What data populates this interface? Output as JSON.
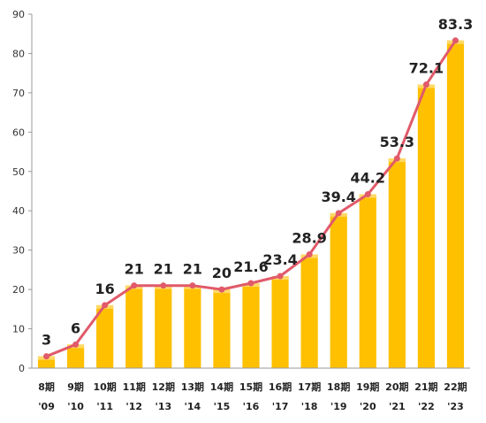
{
  "chart_data": {
    "type": "bar",
    "categories": [
      [
        "8期",
        "'09"
      ],
      [
        "9期",
        "'10"
      ],
      [
        "10期",
        "'11"
      ],
      [
        "11期",
        "'12"
      ],
      [
        "12期",
        "'13"
      ],
      [
        "13期",
        "'14"
      ],
      [
        "14期",
        "'15"
      ],
      [
        "15期",
        "'16"
      ],
      [
        "16期",
        "'17"
      ],
      [
        "17期",
        "'18"
      ],
      [
        "18期",
        "'19"
      ],
      [
        "19期",
        "'20"
      ],
      [
        "20期",
        "'21"
      ],
      [
        "21期",
        "'22"
      ],
      [
        "22期",
        "'23"
      ]
    ],
    "values": [
      3,
      6,
      16,
      21,
      21,
      21,
      20,
      21.6,
      23.4,
      28.9,
      39.4,
      44.2,
      53.3,
      72.1,
      83.3
    ],
    "data_labels": [
      "3",
      "6",
      "16",
      "21",
      "21",
      "21",
      "20",
      "21.6",
      "23.4",
      "28.9",
      "39.4",
      "44.2",
      "53.3",
      "72.1",
      "83.3"
    ],
    "overlay_line": "same values as bars",
    "yticks": [
      "0",
      "10",
      "20",
      "30",
      "40",
      "50",
      "60",
      "70",
      "80",
      "90"
    ],
    "ylim": [
      0,
      90
    ],
    "grid": false,
    "legend": "none",
    "colors": {
      "bar": "#FFC000",
      "bar_highlight": "#FFD966",
      "line": "#E05A6A",
      "marker": "#E05A6A",
      "axis": "#999999"
    }
  }
}
